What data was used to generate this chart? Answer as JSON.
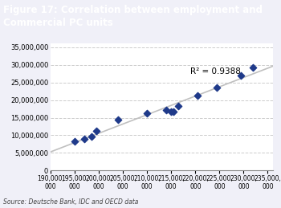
{
  "title": "Figure 17: Correlation between employment and\nCommercial PC units",
  "title_bg_color": "#003082",
  "title_text_color": "#ffffff",
  "source_text": "Source: Deutsche Bank, IDC and OECD data",
  "x_data": [
    195000000,
    197000000,
    198500000,
    199500000,
    204000000,
    210000000,
    214000000,
    215000000,
    215500000,
    216500000,
    220500000,
    224500000,
    229500000,
    232000000
  ],
  "y_data": [
    8200000,
    9000000,
    9700000,
    11200000,
    14500000,
    16200000,
    17200000,
    16700000,
    16700000,
    18300000,
    21200000,
    23500000,
    26900000,
    29300000
  ],
  "r2_value": "R² = 0.9388",
  "r2_x": 219000000,
  "r2_y": 28000000,
  "scatter_color": "#1f3a8a",
  "scatter_marker": "D",
  "scatter_size": 18,
  "trendline_color": "#c0c0c0",
  "xlim": [
    190000000,
    236000000
  ],
  "ylim": [
    0,
    36000000
  ],
  "xticks": [
    190000000,
    195000000,
    200000000,
    205000000,
    210000000,
    215000000,
    220000000,
    225000000,
    230000000,
    235000000
  ],
  "yticks": [
    0,
    5000000,
    10000000,
    15000000,
    20000000,
    25000000,
    30000000,
    35000000
  ],
  "grid_color": "#cccccc",
  "bg_color": "#f0f0f8",
  "plot_bg_color": "#ffffff"
}
